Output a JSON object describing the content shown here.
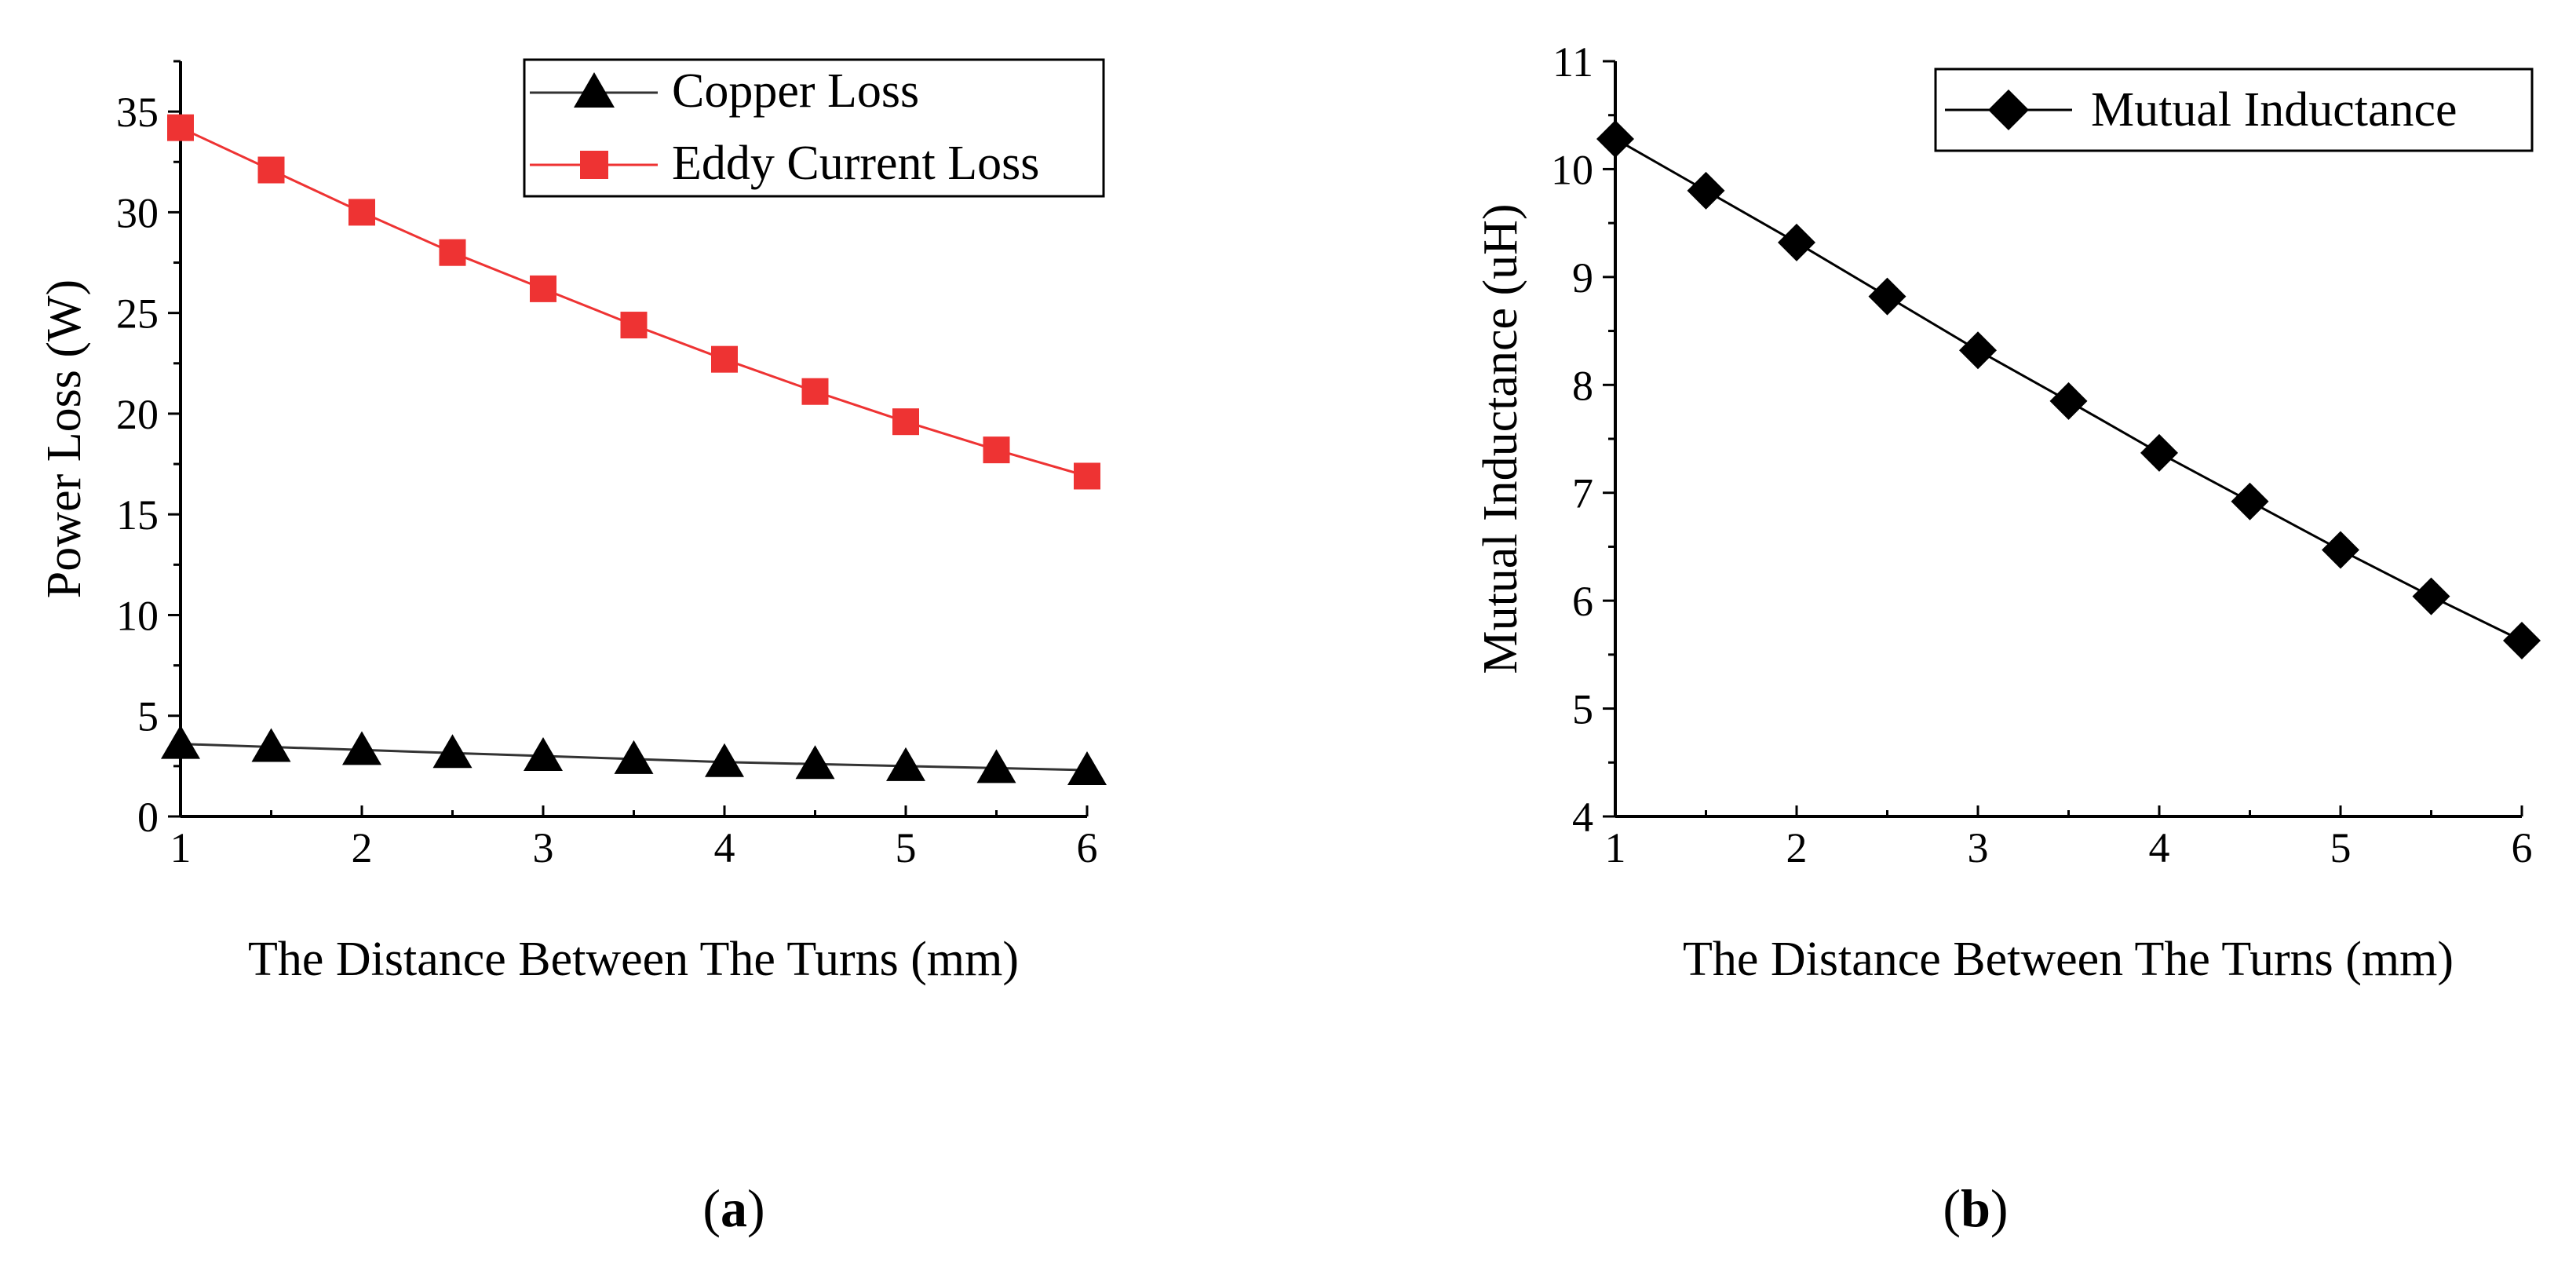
{
  "chart_data": [
    {
      "type": "line",
      "panel": "a",
      "caption": {
        "open": "(",
        "letter": "a",
        "close": ")"
      },
      "xlabel": "The Distance Between The Turns (mm)",
      "ylabel": "Power Loss (W)",
      "xlim": [
        1,
        6
      ],
      "ylim": [
        0,
        37.5
      ],
      "xticks": [
        1,
        2,
        3,
        4,
        5,
        6
      ],
      "yticks": [
        0,
        5,
        10,
        15,
        20,
        25,
        30,
        35
      ],
      "grid": false,
      "legend_position": "top-right",
      "x": [
        1,
        1.5,
        2,
        2.5,
        3,
        3.5,
        4,
        4.5,
        5,
        5.5,
        6
      ],
      "series": [
        {
          "name": "Copper Loss",
          "color": "#000000",
          "line_color": "#333333",
          "marker": "triangle",
          "values": [
            3.6,
            3.45,
            3.3,
            3.15,
            3.0,
            2.85,
            2.7,
            2.6,
            2.5,
            2.4,
            2.3
          ]
        },
        {
          "name": "Eddy Current Loss",
          "color": "#ee3333",
          "line_color": "#ee3333",
          "marker": "square",
          "values": [
            34.2,
            32.1,
            30.0,
            28.0,
            26.2,
            24.4,
            22.7,
            21.1,
            19.6,
            18.2,
            16.9
          ]
        }
      ]
    },
    {
      "type": "line",
      "panel": "b",
      "caption": {
        "open": "(",
        "letter": "b",
        "close": ")"
      },
      "xlabel": "The Distance Between The Turns (mm)",
      "ylabel": "Mutual Inductance (uH)",
      "xlim": [
        1,
        6
      ],
      "ylim": [
        4,
        11
      ],
      "xticks": [
        1,
        2,
        3,
        4,
        5,
        6
      ],
      "yticks": [
        4,
        5,
        6,
        7,
        8,
        9,
        10,
        11
      ],
      "grid": false,
      "legend_position": "top-right",
      "x": [
        1,
        1.5,
        2,
        2.5,
        3,
        3.5,
        4,
        4.5,
        5,
        5.5,
        6
      ],
      "series": [
        {
          "name": "Mutual Inductance",
          "color": "#000000",
          "line_color": "#000000",
          "marker": "diamond",
          "values": [
            10.28,
            9.8,
            9.32,
            8.82,
            8.32,
            7.85,
            7.37,
            6.92,
            6.47,
            6.04,
            5.63
          ]
        }
      ]
    }
  ]
}
